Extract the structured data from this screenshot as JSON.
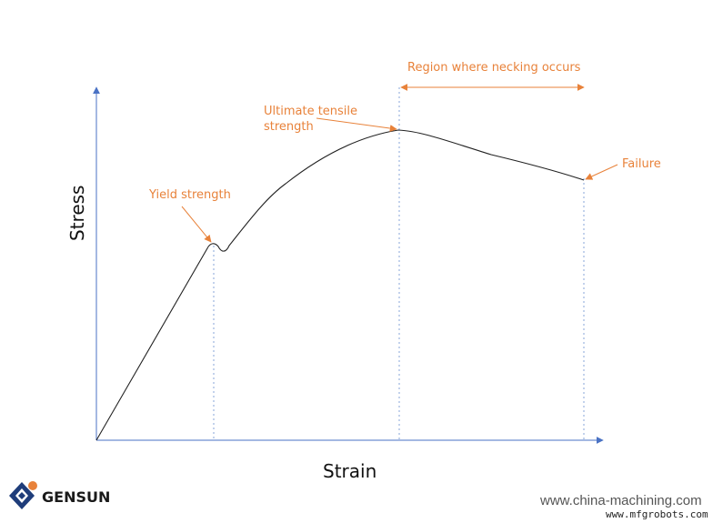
{
  "diagram": {
    "axes": {
      "x_label": "Strain",
      "y_label": "Stress"
    },
    "annotations": {
      "yield": "Yield strength",
      "uts_line1": "Ultimate tensile",
      "uts_line2": "strength",
      "necking": "Region where necking occurs",
      "failure": "Failure"
    },
    "colors": {
      "axis": "#4a72c4",
      "curve": "#222222",
      "annotation": "#e8823a",
      "guide": "#6a8fd0"
    }
  },
  "branding": {
    "logo_text": "GENSUN",
    "watermark_site": "www.china-machining.com",
    "watermark_small": "www.mfgrobots.com"
  }
}
